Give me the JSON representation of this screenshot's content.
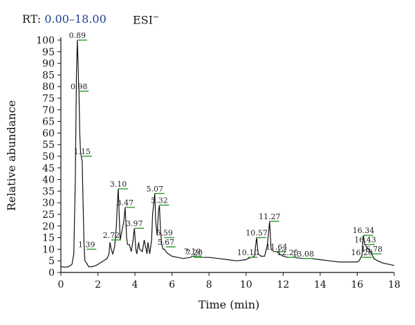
{
  "header": {
    "rt_label": "RT:",
    "rt_range": "0.00–18.00",
    "mode": "ESI",
    "mode_sign": "−"
  },
  "colors": {
    "trace": "#111111",
    "marker": "#3a9a3a",
    "rt_range": "#1f3f8f",
    "axis": "#111111"
  },
  "chart_data": {
    "type": "line",
    "xlabel": "Time (min)",
    "ylabel": "Relative abundance",
    "xlim": [
      0,
      18
    ],
    "ylim": [
      0,
      100
    ],
    "xticks": [
      0,
      2,
      4,
      6,
      8,
      10,
      12,
      14,
      16,
      18
    ],
    "yticks": [
      0,
      5,
      10,
      15,
      20,
      25,
      30,
      35,
      40,
      45,
      50,
      55,
      60,
      65,
      70,
      75,
      80,
      85,
      90,
      95,
      100
    ],
    "grid": false,
    "series": [
      {
        "x": [
          0.0,
          0.2,
          0.4,
          0.6,
          0.7,
          0.78,
          0.84,
          0.89,
          0.93,
          0.96,
          0.98,
          1.02,
          1.06,
          1.1,
          1.15,
          1.2,
          1.25,
          1.3,
          1.39,
          1.5,
          1.7,
          1.9,
          2.1,
          2.3,
          2.5,
          2.6,
          2.65,
          2.72,
          2.8,
          2.9,
          3.0,
          3.05,
          3.1,
          3.15,
          3.2,
          3.3,
          3.4,
          3.47,
          3.55,
          3.6,
          3.7,
          3.8,
          3.9,
          3.97,
          4.05,
          4.1,
          4.2,
          4.25,
          4.4,
          4.5,
          4.6,
          4.65,
          4.7,
          4.8,
          4.9,
          4.95,
          5.02,
          5.07,
          5.12,
          5.2,
          5.27,
          5.32,
          5.38,
          5.45,
          5.52,
          5.59,
          5.67,
          5.8,
          6.0,
          6.3,
          6.6,
          7.0,
          7.1,
          7.3,
          7.6,
          8.0,
          8.5,
          9.0,
          9.5,
          10.0,
          10.1,
          10.3,
          10.45,
          10.57,
          10.65,
          10.8,
          11.0,
          11.15,
          11.27,
          11.35,
          11.5,
          11.64,
          11.8,
          12.0,
          12.25,
          12.5,
          13.08,
          13.5,
          14.0,
          14.5,
          15.0,
          15.5,
          16.0,
          16.1,
          16.2,
          16.26,
          16.3,
          16.34,
          16.4,
          16.43,
          16.5,
          16.6,
          16.7,
          16.78,
          16.9,
          17.1,
          17.4,
          17.7,
          18.0
        ],
        "y": [
          2.5,
          2.3,
          2.4,
          3.5,
          8,
          40,
          85,
          100,
          90,
          80,
          78,
          60,
          52,
          50,
          48,
          30,
          12,
          5,
          4,
          2.5,
          2.5,
          3,
          4,
          5,
          6,
          8,
          13,
          10,
          8,
          11,
          20,
          30,
          36,
          25,
          14,
          18,
          22,
          28,
          15,
          12,
          12,
          9,
          14,
          19,
          10,
          8,
          13,
          10,
          9,
          14,
          10,
          8,
          13,
          8,
          14,
          25,
          30,
          34,
          22,
          16,
          26,
          29,
          18,
          12,
          10,
          10,
          9,
          8,
          7,
          6.5,
          6,
          6.5,
          7,
          6.5,
          6.5,
          6.5,
          6,
          5.5,
          5,
          5.5,
          6,
          6.5,
          7,
          15,
          8,
          7,
          7,
          12,
          22,
          10,
          9,
          9,
          8,
          7,
          6.5,
          6.5,
          6,
          6,
          5.5,
          5,
          4.5,
          4.5,
          4.5,
          5,
          6.5,
          7.5,
          13,
          16,
          12,
          12,
          11,
          10,
          9,
          8,
          6,
          5,
          4,
          3.5,
          3
        ]
      }
    ],
    "peak_labels": [
      {
        "label": "0.89",
        "x": 0.89,
        "y": 100
      },
      {
        "label": "0.98",
        "x": 0.98,
        "y": 78
      },
      {
        "label": "1.15",
        "x": 1.15,
        "y": 50
      },
      {
        "label": "1.39",
        "x": 1.39,
        "y": 10
      },
      {
        "label": "2.72",
        "x": 2.72,
        "y": 14
      },
      {
        "label": "3.10",
        "x": 3.1,
        "y": 36
      },
      {
        "label": "3.47",
        "x": 3.47,
        "y": 28
      },
      {
        "label": "3.97",
        "x": 3.97,
        "y": 19
      },
      {
        "label": "5.07",
        "x": 5.07,
        "y": 34
      },
      {
        "label": "5.32",
        "x": 5.32,
        "y": 29
      },
      {
        "label": "5.59",
        "x": 5.59,
        "y": 15
      },
      {
        "label": "5.67",
        "x": 5.67,
        "y": 11
      },
      {
        "label": "7.10",
        "x": 7.1,
        "y": 7
      },
      {
        "label": "7.20",
        "x": 7.2,
        "y": 6.5
      },
      {
        "label": "10.10",
        "x": 10.1,
        "y": 6.5
      },
      {
        "label": "10.57",
        "x": 10.57,
        "y": 15
      },
      {
        "label": "11.27",
        "x": 11.27,
        "y": 22
      },
      {
        "label": "11.64",
        "x": 11.64,
        "y": 9
      },
      {
        "label": "12.25",
        "x": 12.25,
        "y": 6.5
      },
      {
        "label": "13.08",
        "x": 13.08,
        "y": 6
      },
      {
        "label": "16.26",
        "x": 16.26,
        "y": 6.5
      },
      {
        "label": "16.34",
        "x": 16.34,
        "y": 16
      },
      {
        "label": "16.43",
        "x": 16.43,
        "y": 12
      },
      {
        "label": "16.78",
        "x": 16.78,
        "y": 8
      }
    ]
  }
}
